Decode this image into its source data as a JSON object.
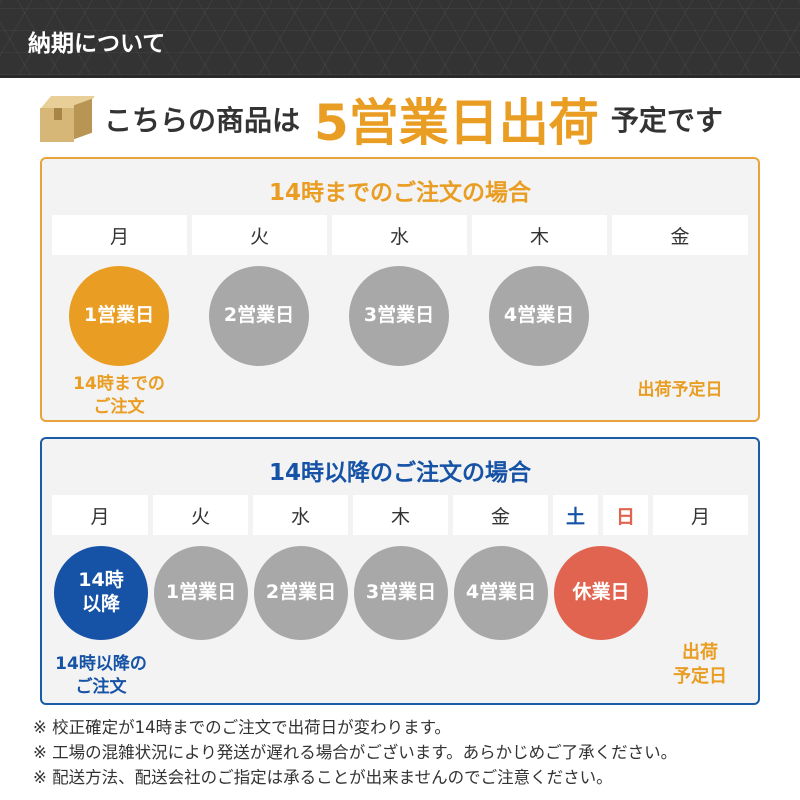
{
  "header": {
    "title": "納期について"
  },
  "headline": {
    "prefix": "こちらの商品は",
    "highlight": "5営業日出荷",
    "suffix": "予定です",
    "icon": "cardboard-box-icon"
  },
  "colors": {
    "orange": "#e99d22",
    "blue": "#1652a5",
    "gray": "#a8a8a8",
    "red": "#e06450",
    "header_bg": "#333333"
  },
  "before14": {
    "title": "14時までのご注文の場合",
    "days": [
      "月",
      "火",
      "水",
      "木",
      "金"
    ],
    "circles": [
      "1営業日",
      "2営業日",
      "3営業日",
      "4営業日"
    ],
    "order_label": "14時までの\nご注文",
    "ship_label": "出荷予定日"
  },
  "after14": {
    "title": "14時以降のご注文の場合",
    "days": [
      "月",
      "火",
      "水",
      "木",
      "金",
      "土",
      "日",
      "月"
    ],
    "circles": [
      "14時\n以降",
      "1営業日",
      "2営業日",
      "3営業日",
      "4営業日",
      "休業日"
    ],
    "order_label": "14時以降の\nご注文",
    "ship_label": "出荷\n予定日"
  },
  "notes": [
    "※ 校正確定が14時までのご注文で出荷日が変わります。",
    "※ 工場の混雑状況により発送が遅れる場合がございます。あらかじめご了承ください。",
    "※ 配送方法、配送会社のご指定は承ることが出来ませんのでご注意ください。"
  ]
}
